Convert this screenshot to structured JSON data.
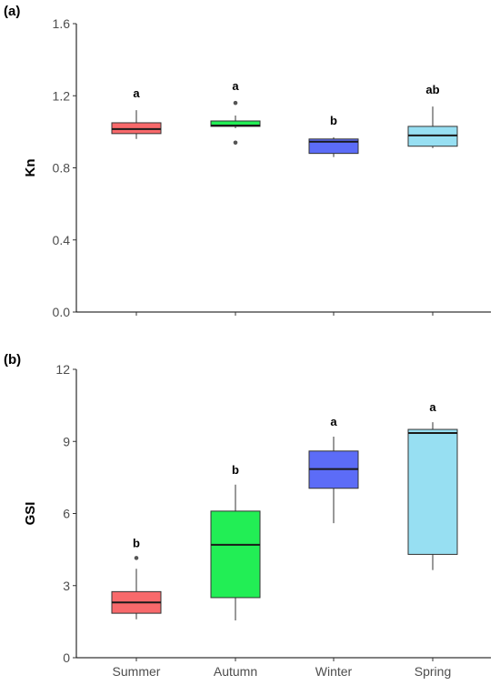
{
  "chart_data": [
    {
      "type": "box",
      "panel_label": "(a)",
      "ylabel": "Kn",
      "ylim": [
        0,
        1.6
      ],
      "yticks": [
        "0.0",
        "0.4",
        "0.8",
        "1.2",
        "1.6"
      ],
      "categories": [
        "Summer",
        "Autumn",
        "Winter",
        "Spring"
      ],
      "show_x_ticklabels": false,
      "boxes": [
        {
          "category": "Summer",
          "color": "#f8696b",
          "whisker_low": 0.96,
          "q1": 0.99,
          "median": 1.015,
          "q3": 1.05,
          "whisker_high": 1.12,
          "outliers": [],
          "letter": "a"
        },
        {
          "category": "Autumn",
          "color": "#22ee55",
          "whisker_low": 1.02,
          "q1": 1.03,
          "median": 1.035,
          "q3": 1.06,
          "whisker_high": 1.09,
          "outliers": [
            1.16,
            0.94
          ],
          "letter": "a"
        },
        {
          "category": "Winter",
          "color": "#5c6cf7",
          "whisker_low": 0.86,
          "q1": 0.88,
          "median": 0.945,
          "q3": 0.96,
          "whisker_high": 0.97,
          "outliers": [],
          "letter": "b"
        },
        {
          "category": "Spring",
          "color": "#97dff2",
          "whisker_low": 0.91,
          "q1": 0.92,
          "median": 0.98,
          "q3": 1.03,
          "whisker_high": 1.14,
          "outliers": [],
          "letter": "ab"
        }
      ]
    },
    {
      "type": "box",
      "panel_label": "(b)",
      "ylabel": "GSI",
      "ylim": [
        0,
        12
      ],
      "yticks": [
        "0",
        "3",
        "6",
        "9",
        "12"
      ],
      "categories": [
        "Summer",
        "Autumn",
        "Winter",
        "Spring"
      ],
      "show_x_ticklabels": true,
      "boxes": [
        {
          "category": "Summer",
          "color": "#f8696b",
          "whisker_low": 1.6,
          "q1": 1.85,
          "median": 2.3,
          "q3": 2.75,
          "whisker_high": 3.7,
          "outliers": [
            4.15
          ],
          "letter": "b"
        },
        {
          "category": "Autumn",
          "color": "#22ee55",
          "whisker_low": 1.55,
          "q1": 2.5,
          "median": 4.7,
          "q3": 6.1,
          "whisker_high": 7.2,
          "outliers": [],
          "letter": "b"
        },
        {
          "category": "Winter",
          "color": "#5c6cf7",
          "whisker_low": 5.6,
          "q1": 7.05,
          "median": 7.85,
          "q3": 8.6,
          "whisker_high": 9.2,
          "outliers": [],
          "letter": "a"
        },
        {
          "category": "Spring",
          "color": "#97dff2",
          "whisker_low": 3.65,
          "q1": 4.3,
          "median": 9.35,
          "q3": 9.5,
          "whisker_high": 9.8,
          "outliers": [],
          "letter": "a"
        }
      ]
    }
  ]
}
